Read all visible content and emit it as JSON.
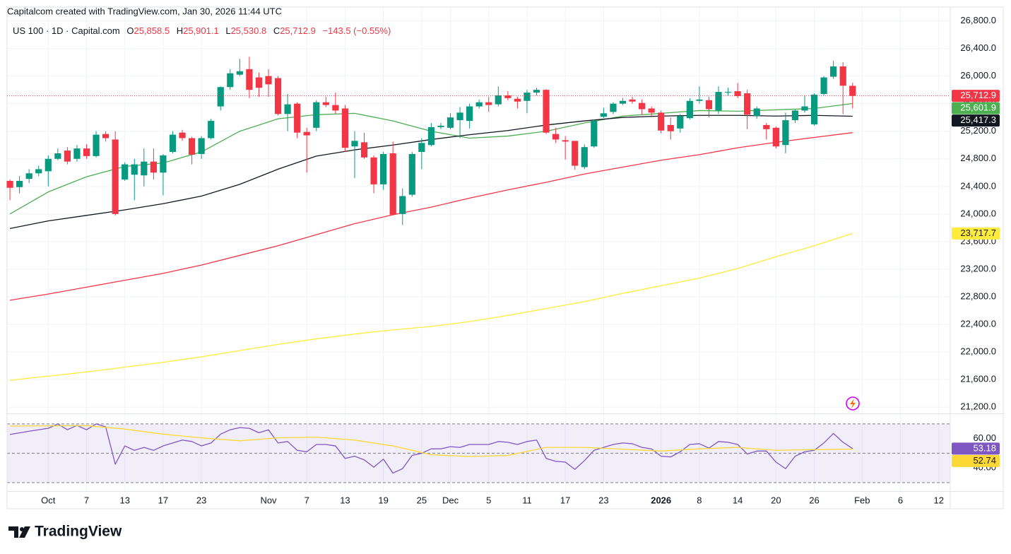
{
  "header": {
    "attribution": "Capitalcom created with TradingView.com, Jan 30, 2026 11:44 UTC",
    "symbol": "US 100 · 1D · Capital.com",
    "ohlc": [
      {
        "key": "O",
        "label": "25,858.5"
      },
      {
        "key": "H",
        "label": "25,901.1"
      },
      {
        "key": "L",
        "label": "25,530.8"
      },
      {
        "key": "C",
        "label": "25,712.9"
      }
    ],
    "change": "−143.5 (−0.55%)"
  },
  "footer": {
    "logo": "TradingView"
  },
  "chart_data": [
    {
      "type": "candlestick",
      "up_color": "#089981",
      "down_color": "#f23645",
      "grid": true,
      "xlim": [
        -0.3,
        98.2
      ],
      "ylim": [
        21110,
        27000
      ],
      "xticks": [
        {
          "value": 4,
          "label": "Oct"
        },
        {
          "value": 8,
          "label": "7"
        },
        {
          "value": 12,
          "label": "13"
        },
        {
          "value": 16,
          "label": "17"
        },
        {
          "value": 20,
          "label": "23"
        },
        {
          "value": 27,
          "label": "Nov"
        },
        {
          "value": 31,
          "label": "7"
        },
        {
          "value": 35,
          "label": "13"
        },
        {
          "value": 39,
          "label": "19"
        },
        {
          "value": 43,
          "label": "25"
        },
        {
          "value": 46,
          "label": "Dec"
        },
        {
          "value": 50,
          "label": "5"
        },
        {
          "value": 54,
          "label": "11"
        },
        {
          "value": 58,
          "label": "17"
        },
        {
          "value": 62,
          "label": "23"
        },
        {
          "value": 68,
          "label": "2026"
        },
        {
          "value": 72,
          "label": "8"
        },
        {
          "value": 76,
          "label": "14"
        },
        {
          "value": 80,
          "label": "20"
        },
        {
          "value": 84,
          "label": "26"
        },
        {
          "value": 89,
          "label": "Feb"
        },
        {
          "value": 93,
          "label": "6"
        },
        {
          "value": 97,
          "label": "12"
        }
      ],
      "yticks": [
        {
          "value": 21200,
          "label": "21,200.0"
        },
        {
          "value": 21600,
          "label": "21,600.0"
        },
        {
          "value": 22000,
          "label": "22,000.0"
        },
        {
          "value": 22400,
          "label": "22,400.0"
        },
        {
          "value": 22800,
          "label": "22,800.0"
        },
        {
          "value": 23200,
          "label": "23,200.0"
        },
        {
          "value": 23600,
          "label": "23,600.0"
        },
        {
          "value": 24000,
          "label": "24,000.0"
        },
        {
          "value": 24400,
          "label": "24,400.0"
        },
        {
          "value": 24800,
          "label": "24,800.0"
        },
        {
          "value": 25200,
          "label": "25,200.0"
        },
        {
          "value": 25600,
          "label": "25,600.0"
        },
        {
          "value": 26000,
          "label": "26,000.0"
        },
        {
          "value": 26400,
          "label": "26,400.0"
        },
        {
          "value": 26800,
          "label": "26,800.0"
        }
      ],
      "candles": {
        "x": [
          0,
          1,
          2,
          3,
          4,
          5,
          6,
          7,
          8,
          9,
          10,
          11,
          12,
          13,
          14,
          15,
          16,
          17,
          18,
          19,
          20,
          21,
          22,
          23,
          24,
          25,
          26,
          27,
          28,
          29,
          30,
          31,
          32,
          33,
          34,
          35,
          36,
          37,
          38,
          39,
          40,
          41,
          42,
          43,
          44,
          45,
          46,
          47,
          48,
          49,
          50,
          51,
          52,
          53,
          54,
          55,
          56,
          57,
          58,
          59,
          60,
          61,
          62,
          63,
          64,
          65,
          66,
          67,
          68,
          69,
          70,
          71,
          72,
          73,
          74,
          75,
          76,
          77,
          78,
          79,
          80,
          81,
          82,
          83,
          84,
          85,
          86,
          87,
          88
        ],
        "open": [
          24480,
          24390,
          24510,
          24590,
          24620,
          24800,
          24920,
          24800,
          24950,
          24840,
          25160,
          25080,
          24500,
          24570,
          24560,
          24760,
          24600,
          24900,
          25180,
          25100,
          24870,
          25100,
          25560,
          25840,
          26020,
          26100,
          25980,
          26000,
          25970,
          25450,
          25600,
          25190,
          25250,
          25620,
          25580,
          25530,
          24980,
          25040,
          24820,
          24430,
          24880,
          24000,
          24280,
          24900,
          25000,
          25260,
          25250,
          25360,
          25350,
          25560,
          25620,
          25590,
          25720,
          25670,
          25640,
          25760,
          25800,
          25160,
          25070,
          25060,
          24680,
          24980,
          25410,
          25480,
          25600,
          25660,
          25610,
          25530,
          25470,
          25290,
          25240,
          25390,
          25640,
          25650,
          25500,
          25760,
          25780,
          25750,
          25420,
          25290,
          25250,
          25000,
          25360,
          25500,
          25300,
          25740,
          25990,
          26140,
          25858.5
        ],
        "high": [
          24500,
          24550,
          24650,
          24700,
          24850,
          24950,
          24970,
          25000,
          25010,
          25200,
          25200,
          25200,
          24750,
          24800,
          24950,
          24950,
          24870,
          25200,
          25220,
          25120,
          25130,
          25380,
          25850,
          26100,
          26250,
          26280,
          26050,
          26100,
          26000,
          25740,
          25620,
          25250,
          25650,
          25700,
          25760,
          25580,
          25200,
          25180,
          24850,
          24900,
          25050,
          24370,
          24900,
          25100,
          25320,
          25320,
          25460,
          25550,
          25600,
          25660,
          25700,
          25850,
          25780,
          25700,
          25800,
          25830,
          25810,
          25250,
          25130,
          25060,
          25010,
          25370,
          25540,
          25620,
          25680,
          25700,
          25660,
          25560,
          25500,
          25400,
          25450,
          25680,
          25850,
          25700,
          25850,
          25830,
          25900,
          25800,
          25560,
          25320,
          25270,
          25470,
          25520,
          25720,
          25750,
          26000,
          26220,
          26200,
          25901.1
        ],
        "low": [
          24200,
          24300,
          24450,
          24550,
          24400,
          24780,
          24720,
          24760,
          24800,
          24820,
          25050,
          23980,
          24480,
          24200,
          24400,
          24500,
          24270,
          24880,
          25060,
          24720,
          24800,
          25080,
          25500,
          25800,
          26000,
          25680,
          25700,
          25700,
          25430,
          25200,
          25100,
          24600,
          25200,
          25550,
          25450,
          24900,
          24520,
          24800,
          24300,
          24350,
          23980,
          23840,
          24250,
          24650,
          24980,
          25230,
          25230,
          25100,
          25240,
          25530,
          25480,
          25560,
          25650,
          25530,
          25460,
          25720,
          25160,
          25030,
          24790,
          24640,
          24650,
          24960,
          25390,
          25450,
          25580,
          25600,
          25440,
          25420,
          25170,
          25080,
          25180,
          25370,
          25600,
          25400,
          25450,
          25720,
          25680,
          25230,
          25380,
          25080,
          24950,
          24880,
          25320,
          25470,
          25280,
          25720,
          25960,
          25450,
          25530.8
        ],
        "close": [
          24380,
          24480,
          24590,
          24650,
          24800,
          24880,
          24760,
          24950,
          24840,
          25150,
          25100,
          24000,
          24720,
          24720,
          24760,
          24600,
          24850,
          25150,
          25100,
          24860,
          25100,
          25350,
          25840,
          26040,
          26070,
          25800,
          25830,
          25880,
          25450,
          25590,
          25180,
          25140,
          25620,
          25580,
          25500,
          24960,
          25060,
          24820,
          24430,
          24870,
          23990,
          24260,
          24870,
          25030,
          25260,
          25280,
          25400,
          25470,
          25560,
          25620,
          25580,
          25720,
          25680,
          25630,
          25760,
          25800,
          25180,
          25080,
          25050,
          24700,
          24970,
          25350,
          25460,
          25600,
          25640,
          25630,
          25520,
          25470,
          25210,
          25200,
          25420,
          25640,
          25660,
          25520,
          25770,
          25770,
          25710,
          25440,
          25530,
          25230,
          24980,
          25360,
          25500,
          25560,
          25730,
          25980,
          26140,
          25860,
          25712.9
        ],
        "last_label": "25,712.9"
      },
      "series": [
        {
          "color": "#4caf50",
          "x": [
            0,
            4,
            8,
            12,
            16,
            20,
            24,
            28,
            32,
            36,
            40,
            44,
            48,
            52,
            56,
            60,
            64,
            68,
            72,
            76,
            80,
            84,
            88
          ],
          "values": [
            24000,
            24320,
            24540,
            24690,
            24740,
            24900,
            25200,
            25380,
            25440,
            25460,
            25350,
            25200,
            25100,
            25130,
            25200,
            25320,
            25420,
            25460,
            25500,
            25490,
            25510,
            25530,
            25601.9
          ],
          "last_label": "25,601.9"
        },
        {
          "color": "#131722",
          "x": [
            0,
            4,
            8,
            12,
            16,
            20,
            24,
            28,
            32,
            36,
            40,
            44,
            48,
            52,
            56,
            60,
            64,
            68,
            72,
            76,
            80,
            84,
            88
          ],
          "values": [
            23790,
            23900,
            23980,
            24060,
            24150,
            24260,
            24430,
            24650,
            24840,
            24930,
            25000,
            25080,
            25150,
            25210,
            25290,
            25350,
            25400,
            25420,
            25430,
            25430,
            25420,
            25430,
            25417.3
          ],
          "last_label": "25,417.3"
        },
        {
          "color": "#f23645",
          "x": [
            0,
            4,
            8,
            12,
            16,
            20,
            24,
            28,
            32,
            36,
            40,
            44,
            48,
            52,
            56,
            60,
            64,
            68,
            72,
            76,
            80,
            84,
            88
          ],
          "values": [
            22750,
            22840,
            22940,
            23040,
            23140,
            23260,
            23400,
            23540,
            23700,
            23860,
            23990,
            24100,
            24230,
            24350,
            24460,
            24580,
            24680,
            24780,
            24860,
            24960,
            25040,
            25110,
            25180
          ]
        },
        {
          "color": "#ffeb3b",
          "x": [
            0,
            4,
            8,
            12,
            16,
            20,
            24,
            28,
            32,
            36,
            40,
            44,
            48,
            52,
            56,
            60,
            64,
            68,
            72,
            76,
            80,
            84,
            88
          ],
          "values": [
            21590,
            21650,
            21710,
            21780,
            21850,
            21930,
            22020,
            22110,
            22190,
            22260,
            22320,
            22370,
            22440,
            22530,
            22630,
            22730,
            22850,
            22960,
            23070,
            23210,
            23380,
            23540,
            23717.7
          ],
          "last_label": "23,717.7"
        }
      ]
    },
    {
      "type": "line",
      "xlim": [
        -0.3,
        98.2
      ],
      "ylim": [
        24.2,
        76.7
      ],
      "bands": [
        70,
        50,
        30
      ],
      "band_color": "#7e57c2",
      "yticks": [
        {
          "value": 60,
          "label": "60.00"
        },
        {
          "value": 40,
          "label": "40.00"
        }
      ],
      "series": [
        {
          "color": "#7e57c2",
          "x": [
            0,
            2,
            4,
            5,
            6,
            7,
            8,
            9,
            10,
            11,
            12,
            13,
            14,
            15,
            16,
            18,
            19,
            20,
            21,
            22,
            23,
            24,
            25,
            26,
            27,
            28,
            29,
            30,
            31,
            32,
            33,
            34,
            35,
            36,
            37,
            38,
            39,
            40,
            41,
            42,
            43,
            44,
            45,
            46,
            47,
            48,
            50,
            51,
            52,
            53,
            54,
            55,
            56,
            57,
            58,
            59,
            60,
            61,
            62,
            63,
            64,
            65,
            66,
            67,
            68,
            69,
            70,
            71,
            72,
            73,
            74,
            75,
            76,
            77,
            78,
            79,
            80,
            81,
            82,
            83,
            84,
            85,
            86,
            87,
            88
          ],
          "values": [
            62.8,
            65,
            67,
            70,
            66,
            69,
            66,
            70,
            68,
            42.5,
            55,
            52,
            54,
            52,
            55,
            59,
            58,
            55,
            57,
            63,
            66,
            67.5,
            67,
            64,
            66,
            57,
            58,
            52,
            51,
            56,
            56,
            55,
            46.5,
            48,
            45.5,
            40.5,
            46,
            36.5,
            39.5,
            48.5,
            50,
            53,
            53,
            54.5,
            54,
            56,
            56,
            58,
            57.5,
            56,
            58,
            59,
            46.5,
            44.5,
            44,
            39,
            45,
            52,
            54,
            56,
            57,
            56.5,
            54,
            53,
            48,
            47.5,
            51,
            56,
            56.5,
            53.5,
            58,
            57.5,
            56,
            49.5,
            51.5,
            51.5,
            44,
            39.5,
            48,
            51,
            52,
            57,
            63.5,
            57.5,
            53.18
          ],
          "last_label": "53.18"
        },
        {
          "color": "#fdd835",
          "x": [
            0,
            4,
            8,
            12,
            16,
            20,
            24,
            28,
            32,
            36,
            40,
            44,
            48,
            52,
            56,
            60,
            64,
            68,
            72,
            76,
            80,
            84,
            88
          ],
          "values": [
            68.5,
            68.7,
            68.8,
            66.5,
            63,
            60.5,
            58.5,
            60.5,
            61,
            59,
            55,
            49,
            47.8,
            48.5,
            54,
            54,
            52.8,
            51.5,
            53,
            54,
            52,
            52.5,
            52.74
          ],
          "last_label": "52.74"
        }
      ]
    }
  ]
}
